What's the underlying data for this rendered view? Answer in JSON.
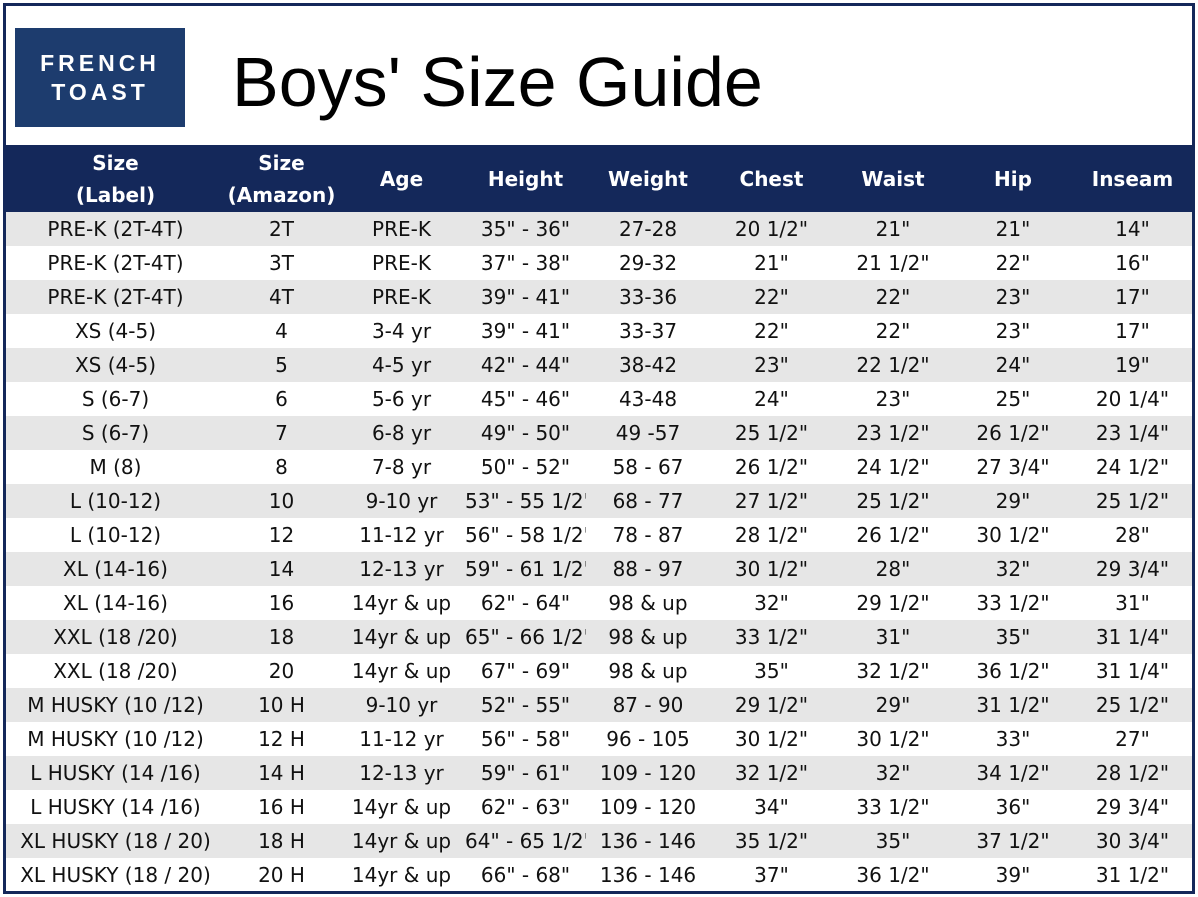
{
  "brand": {
    "logo_line1": "FRENCH",
    "logo_line2": "TOAST"
  },
  "title": "Boys' Size Guide",
  "colors": {
    "header_bg": "#14285a",
    "logo_bg": "#1d3c6e",
    "stripe": "#e6e6e6"
  },
  "columns": [
    [
      "Size",
      "(Label)"
    ],
    [
      "Size",
      "(Amazon)"
    ],
    [
      "Age"
    ],
    [
      "Height"
    ],
    [
      "Weight"
    ],
    [
      "Chest"
    ],
    [
      "Waist"
    ],
    [
      "Hip"
    ],
    [
      "Inseam"
    ]
  ],
  "rows": [
    [
      "PRE-K (2T-4T)",
      "2T",
      "PRE-K",
      "35\" - 36\"",
      "27-28",
      "20 1/2\"",
      "21\"",
      "21\"",
      "14\""
    ],
    [
      "PRE-K (2T-4T)",
      "3T",
      "PRE-K",
      "37\" - 38\"",
      "29-32",
      "21\"",
      "21 1/2\"",
      "22\"",
      "16\""
    ],
    [
      "PRE-K (2T-4T)",
      "4T",
      "PRE-K",
      "39\" - 41\"",
      "33-36",
      "22\"",
      "22\"",
      "23\"",
      "17\""
    ],
    [
      "XS (4-5)",
      "4",
      "3-4 yr",
      "39\" - 41\"",
      "33-37",
      "22\"",
      "22\"",
      "23\"",
      "17\""
    ],
    [
      "XS (4-5)",
      "5",
      "4-5 yr",
      "42\" - 44\"",
      "38-42",
      "23\"",
      "22 1/2\"",
      "24\"",
      "19\""
    ],
    [
      "S (6-7)",
      "6",
      "5-6 yr",
      "45\" - 46\"",
      "43-48",
      "24\"",
      "23\"",
      "25\"",
      "20 1/4\""
    ],
    [
      "S (6-7)",
      "7",
      "6-8 yr",
      "49\" - 50\"",
      "49 -57",
      "25 1/2\"",
      "23 1/2\"",
      "26 1/2\"",
      "23 1/4\""
    ],
    [
      "M (8)",
      "8",
      "7-8 yr",
      "50\" - 52\"",
      "58 - 67",
      "26 1/2\"",
      "24 1/2\"",
      "27 3/4\"",
      "24 1/2\""
    ],
    [
      "L (10-12)",
      "10",
      "9-10 yr",
      "53\" - 55 1/2\"",
      "68 - 77",
      "27 1/2\"",
      "25 1/2\"",
      "29\"",
      "25 1/2\""
    ],
    [
      "L (10-12)",
      "12",
      "11-12 yr",
      "56\" - 58 1/2\"",
      "78 - 87",
      "28 1/2\"",
      "26 1/2\"",
      "30 1/2\"",
      "28\""
    ],
    [
      "XL (14-16)",
      "14",
      "12-13 yr",
      "59\" - 61 1/2\"",
      "88 - 97",
      "30 1/2\"",
      "28\"",
      "32\"",
      "29 3/4\""
    ],
    [
      "XL (14-16)",
      "16",
      "14yr & up",
      "62\" - 64\"",
      "98 & up",
      "32\"",
      "29 1/2\"",
      "33 1/2\"",
      "31\""
    ],
    [
      "XXL (18 /20)",
      "18",
      "14yr & up",
      "65\" - 66 1/2\"",
      "98 & up",
      "33 1/2\"",
      "31\"",
      "35\"",
      "31 1/4\""
    ],
    [
      "XXL (18 /20)",
      "20",
      "14yr & up",
      "67\" - 69\"",
      "98 & up",
      "35\"",
      "32 1/2\"",
      "36 1/2\"",
      "31 1/4\""
    ],
    [
      "M HUSKY (10 /12)",
      "10 H",
      "9-10 yr",
      "52\" - 55\"",
      "87 - 90",
      "29 1/2\"",
      "29\"",
      "31 1/2\"",
      "25 1/2\""
    ],
    [
      "M HUSKY (10 /12)",
      "12 H",
      "11-12 yr",
      "56\" - 58\"",
      "96 - 105",
      "30 1/2\"",
      "30 1/2\"",
      "33\"",
      "27\""
    ],
    [
      "L HUSKY (14 /16)",
      "14 H",
      "12-13 yr",
      "59\" - 61\"",
      "109 - 120",
      "32 1/2\"",
      "32\"",
      "34 1/2\"",
      "28 1/2\""
    ],
    [
      "L HUSKY (14 /16)",
      "16 H",
      "14yr & up",
      "62\" - 63\"",
      "109 - 120",
      "34\"",
      "33 1/2\"",
      "36\"",
      "29 3/4\""
    ],
    [
      "XL HUSKY (18 / 20)",
      "18 H",
      "14yr & up",
      "64\" - 65 1/2\"",
      "136 - 146",
      "35 1/2\"",
      "35\"",
      "37 1/2\"",
      "30 3/4\""
    ],
    [
      "XL HUSKY (18 / 20)",
      "20 H",
      "14yr & up",
      "66\" - 68\"",
      "136 - 146",
      "37\"",
      "36 1/2\"",
      "39\"",
      "31 1/2\""
    ]
  ]
}
